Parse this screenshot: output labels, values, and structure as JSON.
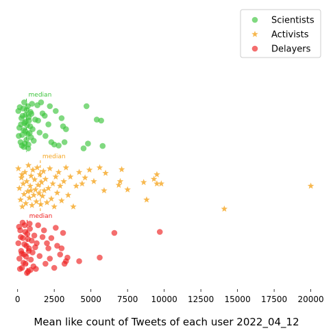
{
  "chart_data": {
    "type": "scatter",
    "title": "",
    "xlabel": "Mean like count of Tweets of each user 2022_04_12",
    "ylabel": "",
    "xlim": [
      -500,
      21000
    ],
    "x_ticks": [
      0,
      2500,
      5000,
      7500,
      10000,
      12500,
      15000,
      17500,
      20000
    ],
    "x_tick_labels": [
      "0",
      "2500",
      "5000",
      "7500",
      "10000",
      "12500",
      "15000",
      "17500",
      "20000"
    ],
    "grid": false,
    "legend_position": "top-right",
    "median_label": "median",
    "series": [
      {
        "name": "Scientists",
        "marker": "circle",
        "color": "#3cc43c",
        "median": 600,
        "points": [
          [
            50,
            0.2
          ],
          [
            120,
            0.55
          ],
          [
            200,
            0.85
          ],
          [
            260,
            0.35
          ],
          [
            310,
            0.7
          ],
          [
            380,
            0.15
          ],
          [
            420,
            0.95
          ],
          [
            460,
            0.45
          ],
          [
            520,
            0.62
          ],
          [
            560,
            0.28
          ],
          [
            600,
            0.8
          ],
          [
            640,
            0.5
          ],
          [
            700,
            0.1
          ],
          [
            740,
            0.9
          ],
          [
            780,
            0.4
          ],
          [
            820,
            0.66
          ],
          [
            880,
            0.22
          ],
          [
            920,
            0.75
          ],
          [
            980,
            0.05
          ],
          [
            1020,
            0.58
          ],
          [
            80,
            0.72
          ],
          [
            150,
            0.12
          ],
          [
            230,
            0.48
          ],
          [
            290,
            0.92
          ],
          [
            340,
            0.3
          ],
          [
            400,
            0.6
          ],
          [
            450,
            0.02
          ],
          [
            500,
            0.88
          ],
          [
            550,
            0.42
          ],
          [
            620,
            0.18
          ],
          [
            680,
            0.68
          ],
          [
            720,
            0.98
          ],
          [
            760,
            0.33
          ],
          [
            860,
            0.52
          ],
          [
            940,
            0.26
          ],
          [
            1100,
            0.82
          ],
          [
            1200,
            0.38
          ],
          [
            1350,
            0.08
          ],
          [
            1500,
            0.65
          ],
          [
            1700,
            0.25
          ],
          [
            1900,
            0.72
          ],
          [
            2100,
            0.48
          ],
          [
            2300,
            0.85
          ],
          [
            2500,
            0.9
          ],
          [
            2800,
            0.92
          ],
          [
            3100,
            0.52
          ],
          [
            3300,
            0.58
          ],
          [
            3200,
            0.85
          ],
          [
            2200,
            0.1
          ],
          [
            1850,
            0.3
          ],
          [
            4500,
            0.98
          ],
          [
            4800,
            0.88
          ],
          [
            5400,
            0.38
          ],
          [
            5700,
            0.4
          ],
          [
            5800,
            0.93
          ],
          [
            4700,
            0.1
          ],
          [
            1600,
            0.02
          ],
          [
            1400,
            0.4
          ],
          [
            2600,
            0.2
          ],
          [
            3000,
            0.35
          ]
        ]
      },
      {
        "name": "Activists",
        "marker": "star",
        "color": "#f5a623",
        "median": 1550,
        "points": [
          [
            50,
            0.12
          ],
          [
            120,
            0.55
          ],
          [
            200,
            0.8
          ],
          [
            260,
            0.32
          ],
          [
            320,
            0.95
          ],
          [
            380,
            0.45
          ],
          [
            440,
            0.68
          ],
          [
            500,
            0.2
          ],
          [
            560,
            0.88
          ],
          [
            620,
            0.4
          ],
          [
            680,
            0.62
          ],
          [
            740,
            0.05
          ],
          [
            800,
            0.76
          ],
          [
            860,
            0.5
          ],
          [
            920,
            0.28
          ],
          [
            980,
            0.92
          ],
          [
            1040,
            0.15
          ],
          [
            1100,
            0.7
          ],
          [
            1160,
            0.36
          ],
          [
            1220,
            0.58
          ],
          [
            1280,
            0.84
          ],
          [
            1340,
            0.1
          ],
          [
            1400,
            0.48
          ],
          [
            1460,
            0.66
          ],
          [
            1520,
            0.25
          ],
          [
            1580,
            0.9
          ],
          [
            1640,
            0.42
          ],
          [
            1700,
            0.72
          ],
          [
            1760,
            0.18
          ],
          [
            1820,
            0.6
          ],
          [
            1900,
            0.35
          ],
          [
            2000,
            0.86
          ],
          [
            2100,
            0.55
          ],
          [
            2200,
            0.12
          ],
          [
            2300,
            0.78
          ],
          [
            2400,
            0.45
          ],
          [
            2500,
            0.95
          ],
          [
            2600,
            0.3
          ],
          [
            2700,
            0.65
          ],
          [
            2800,
            0.2
          ],
          [
            2900,
            0.5
          ],
          [
            3000,
            0.82
          ],
          [
            3150,
            0.4
          ],
          [
            3300,
            0.1
          ],
          [
            3450,
            0.7
          ],
          [
            3600,
            0.3
          ],
          [
            3800,
            0.95
          ],
          [
            4000,
            0.5
          ],
          [
            4200,
            0.2
          ],
          [
            4400,
            0.45
          ],
          [
            4600,
            0.32
          ],
          [
            4900,
            0.15
          ],
          [
            5200,
            0.4
          ],
          [
            5600,
            0.1
          ],
          [
            5900,
            0.6
          ],
          [
            6000,
            0.22
          ],
          [
            6900,
            0.48
          ],
          [
            7000,
            0.4
          ],
          [
            7100,
            0.14
          ],
          [
            7500,
            0.58
          ],
          [
            8600,
            0.42
          ],
          [
            8800,
            0.8
          ],
          [
            9300,
            0.35
          ],
          [
            9500,
            0.25
          ],
          [
            9500,
            0.45
          ],
          [
            9800,
            0.45
          ],
          [
            14100,
            1.0
          ],
          [
            20000,
            0.5
          ],
          [
            300,
            0.25
          ],
          [
            900,
            0.6
          ]
        ]
      },
      {
        "name": "Delayers",
        "marker": "circle",
        "color": "#ee2020",
        "median": 650,
        "points": [
          [
            50,
            0.4
          ],
          [
            120,
            0.7
          ],
          [
            180,
            0.15
          ],
          [
            240,
            0.55
          ],
          [
            300,
            0.88
          ],
          [
            360,
            0.3
          ],
          [
            420,
            0.62
          ],
          [
            480,
            0.05
          ],
          [
            540,
            0.8
          ],
          [
            600,
            0.45
          ],
          [
            660,
            0.22
          ],
          [
            720,
            0.95
          ],
          [
            780,
            0.5
          ],
          [
            840,
            0.12
          ],
          [
            900,
            0.72
          ],
          [
            960,
            0.35
          ],
          [
            1020,
            0.58
          ],
          [
            1080,
            0.85
          ],
          [
            1140,
            0.25
          ],
          [
            1200,
            0.48
          ],
          [
            100,
            0.08
          ],
          [
            160,
            0.9
          ],
          [
            220,
            0.28
          ],
          [
            280,
            0.6
          ],
          [
            340,
            0.0
          ],
          [
            400,
            0.78
          ],
          [
            460,
            0.42
          ],
          [
            520,
            0.18
          ],
          [
            580,
            0.66
          ],
          [
            640,
            0.98
          ],
          [
            700,
            0.32
          ],
          [
            760,
            0.55
          ],
          [
            820,
            0.02
          ],
          [
            880,
            0.92
          ],
          [
            1300,
            0.4
          ],
          [
            1500,
            0.65
          ],
          [
            1700,
            0.28
          ],
          [
            1900,
            0.8
          ],
          [
            2100,
            0.5
          ],
          [
            2300,
            0.3
          ],
          [
            2500,
            0.88
          ],
          [
            2700,
            0.45
          ],
          [
            2900,
            0.62
          ],
          [
            3100,
            0.2
          ],
          [
            3300,
            0.75
          ],
          [
            1400,
            0.05
          ],
          [
            2000,
            0.4
          ],
          [
            3000,
            0.5
          ],
          [
            3200,
            0.8
          ],
          [
            4200,
            0.75
          ],
          [
            5600,
            0.68
          ],
          [
            6600,
            0.2
          ],
          [
            9700,
            0.18
          ],
          [
            2600,
            0.1
          ],
          [
            1800,
            0.15
          ],
          [
            2200,
            0.7
          ],
          [
            3400,
            0.68
          ],
          [
            1250,
            0.9
          ]
        ]
      }
    ]
  }
}
